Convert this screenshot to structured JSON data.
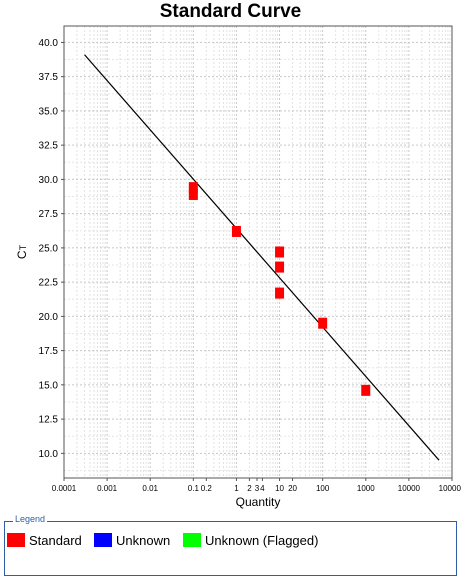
{
  "chart_data": {
    "type": "scatter",
    "title": "Standard Curve",
    "xlabel": "Quantity",
    "ylabel": "CT",
    "x_scale": "log",
    "xlim": [
      0.0001,
      100000
    ],
    "ylim": [
      8.2,
      41.2
    ],
    "x_ticks": [
      {
        "value": 0.0001,
        "label": "0.0001"
      },
      {
        "value": 0.001,
        "label": "0.001"
      },
      {
        "value": 0.01,
        "label": "0.01"
      },
      {
        "value": 0.1,
        "label": "0.1"
      },
      {
        "value": 0.2,
        "label": "0.2"
      },
      {
        "value": 1,
        "label": "1"
      },
      {
        "value": 2,
        "label": "2"
      },
      {
        "value": 3,
        "label": "3"
      },
      {
        "value": 4,
        "label": "4"
      },
      {
        "value": 10,
        "label": "10"
      },
      {
        "value": 20,
        "label": "20"
      },
      {
        "value": 100,
        "label": "100"
      },
      {
        "value": 1000,
        "label": "1000"
      },
      {
        "value": 10000,
        "label": "10000"
      },
      {
        "value": 100000,
        "label": "100000"
      }
    ],
    "y_ticks": [
      "10.0",
      "12.5",
      "15.0",
      "17.5",
      "20.0",
      "22.5",
      "25.0",
      "27.5",
      "30.0",
      "32.5",
      "35.0",
      "37.5",
      "40.0"
    ],
    "grid": true,
    "series": [
      {
        "name": "Standard",
        "color": "#ff0000",
        "points": [
          {
            "x": 0.1,
            "y": 29.4
          },
          {
            "x": 0.1,
            "y": 28.9
          },
          {
            "x": 1,
            "y": 26.2
          },
          {
            "x": 10,
            "y": 24.7
          },
          {
            "x": 10,
            "y": 23.6
          },
          {
            "x": 10,
            "y": 21.7
          },
          {
            "x": 100,
            "y": 19.5
          },
          {
            "x": 1000,
            "y": 14.6
          }
        ]
      }
    ],
    "fit_line": {
      "x": [
        0.0003,
        50000
      ],
      "y": [
        39.1,
        9.5
      ],
      "color": "#000000"
    }
  },
  "legend": {
    "title": "Legend",
    "items": [
      {
        "label": "Standard",
        "color": "#ff0000"
      },
      {
        "label": "Unknown",
        "color": "#0000ff"
      },
      {
        "label": "Unknown (Flagged)",
        "color": "#00ff00"
      }
    ]
  }
}
